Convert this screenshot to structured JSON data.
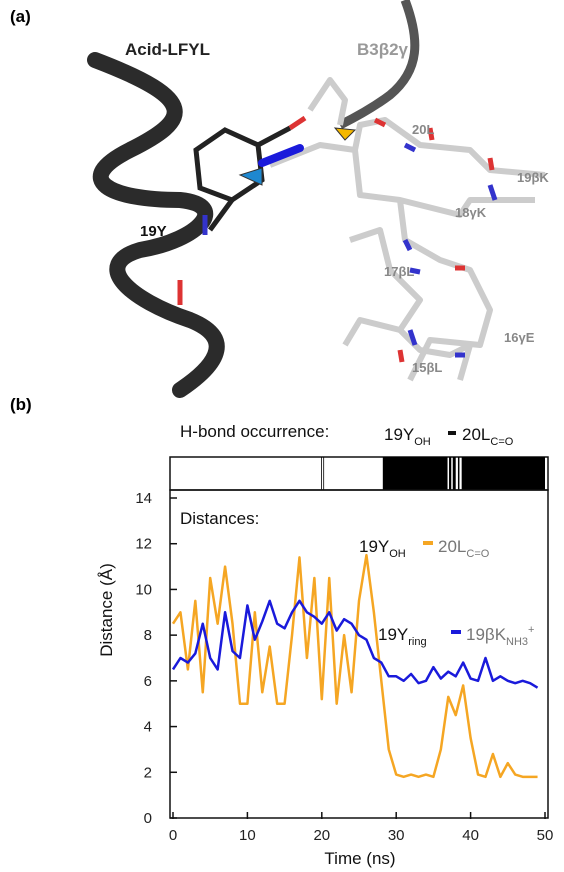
{
  "panel_a": {
    "label": "(a)",
    "labels": [
      "Acid-LFYL",
      "B3β2γ",
      "20L",
      "19βK",
      "18γK",
      "19Y",
      "17βL",
      "16γE",
      "15βL"
    ]
  },
  "panel_b": {
    "label": "(b)"
  },
  "chart_data": {
    "type": "line",
    "hbond_occurrence": {
      "title": "H-bond occurrence:",
      "name": [
        "19Y",
        "OH",
        "20L",
        "C=O"
      ],
      "intervals": [
        [
          19.9,
          20.0
        ],
        [
          20.2,
          20.3
        ],
        [
          28.2,
          36.9
        ],
        [
          37.1,
          37.4
        ],
        [
          37.6,
          38.0
        ],
        [
          38.3,
          38.5
        ],
        [
          38.8,
          50
        ]
      ]
    },
    "annotation": "Distances:",
    "x_label": "Time (ns)",
    "y_label": "Distance (Å)",
    "xlim": [
      0,
      50
    ],
    "xticks": [
      0,
      10,
      20,
      30,
      40,
      50
    ],
    "ylim": [
      0,
      14
    ],
    "yticks": [
      0,
      2,
      4,
      6,
      8,
      10,
      12,
      14
    ],
    "x": [
      0,
      1,
      2,
      3,
      4,
      5,
      6,
      7,
      8,
      9,
      10,
      11,
      12,
      13,
      14,
      15,
      16,
      17,
      18,
      19,
      20,
      21,
      22,
      23,
      24,
      25,
      26,
      27,
      28,
      29,
      30,
      31,
      32,
      33,
      34,
      35,
      36,
      37,
      38,
      39,
      40,
      41,
      42,
      43,
      44,
      45,
      46,
      47,
      48,
      49
    ],
    "series": [
      {
        "name": [
          "19Y",
          "OH",
          "20L",
          "C=O"
        ],
        "color": "#f5a623",
        "values": [
          8.5,
          9,
          6.5,
          9.5,
          5.5,
          10.5,
          8.5,
          11,
          8.5,
          5,
          5,
          9,
          5.5,
          7.5,
          5,
          5,
          8,
          11.4,
          7,
          10.5,
          5.2,
          10.5,
          5,
          8,
          5.5,
          9.5,
          11.5,
          9,
          6,
          3,
          1.9,
          1.8,
          1.9,
          1.8,
          1.9,
          1.8,
          3,
          5.3,
          4.5,
          5.8,
          3.5,
          1.9,
          1.8,
          2.8,
          1.8,
          2.4,
          1.9,
          1.8,
          1.8,
          1.8
        ]
      },
      {
        "name": [
          "19Y",
          "ring",
          "19βK",
          "NH3",
          "+"
        ],
        "color": "#1a1adb",
        "values": [
          6.5,
          7,
          6.8,
          7.2,
          8.5,
          7,
          6.5,
          9,
          7.3,
          7,
          9.3,
          7.8,
          8.6,
          9.5,
          8.5,
          8.3,
          9,
          9.5,
          9,
          8.8,
          8.5,
          9,
          8.2,
          8.7,
          8.5,
          8,
          7.8,
          7,
          6.8,
          6.2,
          6.2,
          6,
          6.3,
          5.9,
          6,
          6.6,
          6.1,
          6.4,
          6.2,
          6.8,
          6.1,
          6,
          7,
          6,
          6.2,
          6,
          5.9,
          6,
          5.9,
          5.7
        ]
      }
    ]
  }
}
